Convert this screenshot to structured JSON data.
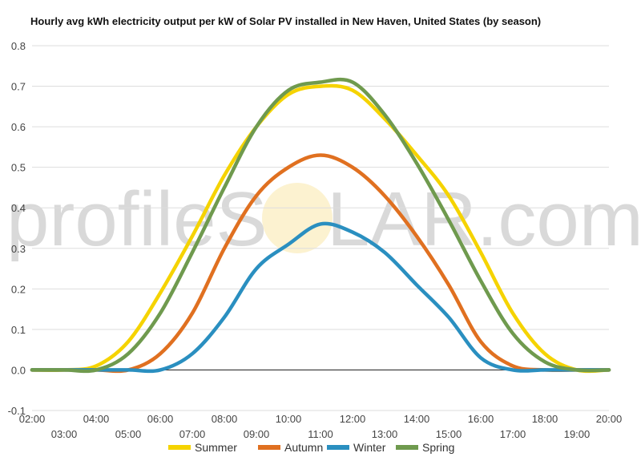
{
  "chart_data": {
    "type": "line",
    "title": "Hourly avg kWh electricity output per kW of Solar PV installed in New Haven, United States (by season)",
    "watermark": {
      "left": "profileS",
      "right": "LAR.com"
    },
    "ylim": [
      -0.1,
      0.8
    ],
    "yticks": [
      "0.8",
      "0.7",
      "0.6",
      "0.5",
      "0.4",
      "0.3",
      "0.2",
      "0.1",
      "0.0",
      "-0.1"
    ],
    "ytick_values": [
      0.8,
      0.7,
      0.6,
      0.5,
      0.4,
      0.3,
      0.2,
      0.1,
      0.0,
      -0.1
    ],
    "x": [
      2,
      3,
      4,
      5,
      6,
      7,
      8,
      9,
      10,
      11,
      12,
      13,
      14,
      15,
      16,
      17,
      18,
      19,
      20
    ],
    "xtick_labels": [
      "02:00",
      "03:00",
      "04:00",
      "05:00",
      "06:00",
      "07:00",
      "08:00",
      "09:00",
      "10:00",
      "11:00",
      "12:00",
      "13:00",
      "14:00",
      "15:00",
      "16:00",
      "17:00",
      "18:00",
      "19:00",
      "20:00"
    ],
    "grid": true,
    "legend_position": "bottom",
    "series": [
      {
        "name": "Summer",
        "color": "#f5d300",
        "values": [
          0,
          0,
          0.01,
          0.07,
          0.19,
          0.33,
          0.48,
          0.6,
          0.68,
          0.7,
          0.69,
          0.62,
          0.53,
          0.43,
          0.29,
          0.14,
          0.04,
          0,
          0
        ]
      },
      {
        "name": "Autumn",
        "color": "#e07020",
        "values": [
          0,
          0,
          0,
          0,
          0.04,
          0.14,
          0.3,
          0.43,
          0.5,
          0.53,
          0.5,
          0.43,
          0.33,
          0.21,
          0.07,
          0.01,
          0,
          0,
          0
        ]
      },
      {
        "name": "Winter",
        "color": "#2a8fc0",
        "values": [
          0,
          0,
          0,
          0,
          0,
          0.04,
          0.13,
          0.25,
          0.31,
          0.36,
          0.34,
          0.29,
          0.21,
          0.13,
          0.03,
          0,
          0,
          0,
          0
        ]
      },
      {
        "name": "Spring",
        "color": "#6f9a4e",
        "values": [
          0,
          0,
          0,
          0.04,
          0.14,
          0.29,
          0.45,
          0.6,
          0.69,
          0.71,
          0.71,
          0.63,
          0.51,
          0.37,
          0.22,
          0.09,
          0.02,
          0,
          0
        ]
      }
    ]
  }
}
